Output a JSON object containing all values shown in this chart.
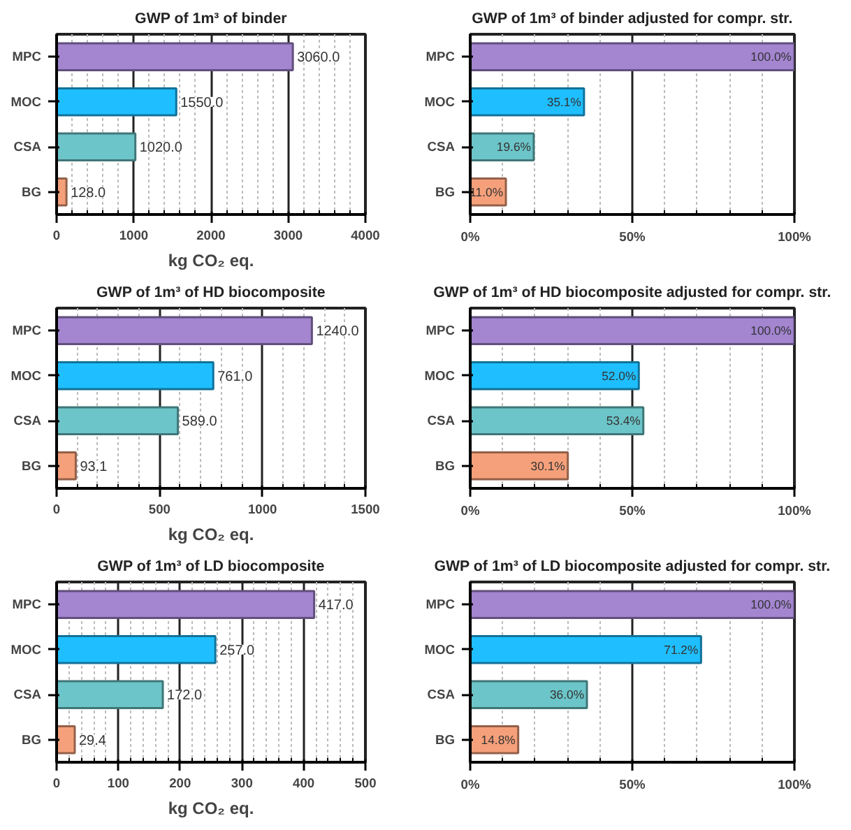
{
  "chart_data": [
    {
      "type": "bar",
      "orientation": "horizontal",
      "title": "GWP of 1m³ of binder",
      "xlabel": "kg CO₂ eq.",
      "categories": [
        "MPC",
        "MOC",
        "CSA",
        "BG"
      ],
      "values": [
        3060,
        1550,
        1020,
        128
      ],
      "value_labels": [
        "3060.0",
        "1550.0",
        "1020.0",
        "128.0"
      ],
      "colors": [
        "#a385d0",
        "#1fbfff",
        "#6cc5c8",
        "#f5a07a"
      ],
      "xlim": [
        0,
        4000
      ],
      "xticks": [
        0,
        {
          "value": 200,
          "label": null
        },
        {
          "value": 400,
          "label": null
        },
        {
          "value": 600,
          "label": null
        },
        {
          "value": 800,
          "label": null
        },
        1000,
        {
          "value": 1200,
          "label": null
        },
        {
          "value": 1400,
          "label": null
        },
        {
          "value": 1600,
          "label": null
        },
        {
          "value": 1800,
          "label": null
        },
        2000,
        {
          "value": 2200,
          "label": null
        },
        {
          "value": 2400,
          "label": null
        },
        {
          "value": 2600,
          "label": null
        },
        {
          "value": 2800,
          "label": null
        },
        3000,
        {
          "value": 3200,
          "label": null
        },
        {
          "value": 3400,
          "label": null
        },
        {
          "value": 3600,
          "label": null
        },
        {
          "value": 3800,
          "label": null
        },
        4000
      ],
      "grid": "x"
    },
    {
      "type": "bar",
      "orientation": "horizontal",
      "title": "GWP of 1m³ of binder adjusted for compr. str.",
      "ref_lines": [
        {
          "axis": "x",
          "value": 50
        }
      ],
      "categories": [
        "MPC",
        "MOC",
        "CSA",
        "BG"
      ],
      "values": [
        100.0,
        35.1,
        19.6,
        11.0
      ],
      "value_labels": [
        "100.0%",
        "35.1%",
        "19.6%",
        "11.0%"
      ],
      "colors": [
        "#a385d0",
        "#1fbfff",
        "#6cc5c8",
        "#f5a07a"
      ],
      "xlim": [
        0,
        100
      ],
      "xticks": [
        {
          "value": 0,
          "label": "0%"
        },
        {
          "value": 10,
          "label": null
        },
        {
          "value": 20,
          "label": null
        },
        {
          "value": 30,
          "label": null
        },
        {
          "value": 40,
          "label": null
        },
        {
          "value": 50,
          "label": "50%"
        },
        {
          "value": 60,
          "label": null
        },
        {
          "value": 70,
          "label": null
        },
        {
          "value": 80,
          "label": null
        },
        {
          "value": 90,
          "label": null
        },
        {
          "value": 100,
          "label": "100%"
        }
      ],
      "grid": "x"
    },
    {
      "type": "bar",
      "orientation": "horizontal",
      "title": "GWP of 1m³ of HD biocomposite",
      "xlabel": "kg CO₂ eq.",
      "categories": [
        "MPC",
        "MOC",
        "CSA",
        "BG"
      ],
      "values": [
        1240,
        761,
        589,
        93.1
      ],
      "value_labels": [
        "1240.0",
        "761.0",
        "589.0",
        "93.1"
      ],
      "colors": [
        "#a385d0",
        "#1fbfff",
        "#6cc5c8",
        "#f5a07a"
      ],
      "xlim": [
        0,
        1500
      ],
      "xticks": [
        0,
        {
          "value": 100,
          "label": null
        },
        {
          "value": 200,
          "label": null
        },
        {
          "value": 300,
          "label": null
        },
        {
          "value": 400,
          "label": null
        },
        500,
        {
          "value": 600,
          "label": null
        },
        {
          "value": 700,
          "label": null
        },
        {
          "value": 800,
          "label": null
        },
        {
          "value": 900,
          "label": null
        },
        1000,
        {
          "value": 1100,
          "label": null
        },
        {
          "value": 1200,
          "label": null
        },
        {
          "value": 1300,
          "label": null
        },
        {
          "value": 1400,
          "label": null
        },
        1500
      ],
      "grid": "x"
    },
    {
      "type": "bar",
      "orientation": "horizontal",
      "title": "GWP of 1m³ of HD biocomposite adjusted for compr. str.",
      "ref_lines": [
        {
          "axis": "x",
          "value": 50
        }
      ],
      "categories": [
        "MPC",
        "MOC",
        "CSA",
        "BG"
      ],
      "values": [
        100.0,
        52.0,
        53.4,
        30.1
      ],
      "value_labels": [
        "100.0%",
        "52.0%",
        "53.4%",
        "30.1%"
      ],
      "colors": [
        "#a385d0",
        "#1fbfff",
        "#6cc5c8",
        "#f5a07a"
      ],
      "xlim": [
        0,
        100
      ],
      "xticks": [
        {
          "value": 0,
          "label": "0%"
        },
        {
          "value": 10,
          "label": null
        },
        {
          "value": 20,
          "label": null
        },
        {
          "value": 30,
          "label": null
        },
        {
          "value": 40,
          "label": null
        },
        {
          "value": 50,
          "label": "50%"
        },
        {
          "value": 60,
          "label": null
        },
        {
          "value": 70,
          "label": null
        },
        {
          "value": 80,
          "label": null
        },
        {
          "value": 90,
          "label": null
        },
        {
          "value": 100,
          "label": "100%"
        }
      ],
      "grid": "x"
    },
    {
      "type": "bar",
      "orientation": "horizontal",
      "title": "GWP of 1m³ of LD biocomposite",
      "xlabel": "kg CO₂ eq.",
      "categories": [
        "MPC",
        "MOC",
        "CSA",
        "BG"
      ],
      "values": [
        417,
        257,
        172,
        29.4
      ],
      "value_labels": [
        "417.0",
        "257.0",
        "172.0",
        "29.4"
      ],
      "colors": [
        "#a385d0",
        "#1fbfff",
        "#6cc5c8",
        "#f5a07a"
      ],
      "xlim": [
        0,
        500
      ],
      "xticks": [
        0,
        {
          "value": 20,
          "label": null
        },
        {
          "value": 40,
          "label": null
        },
        {
          "value": 60,
          "label": null
        },
        {
          "value": 80,
          "label": null
        },
        100,
        {
          "value": 120,
          "label": null
        },
        {
          "value": 140,
          "label": null
        },
        {
          "value": 160,
          "label": null
        },
        {
          "value": 180,
          "label": null
        },
        200,
        {
          "value": 220,
          "label": null
        },
        {
          "value": 240,
          "label": null
        },
        {
          "value": 260,
          "label": null
        },
        {
          "value": 280,
          "label": null
        },
        300,
        {
          "value": 320,
          "label": null
        },
        {
          "value": 340,
          "label": null
        },
        {
          "value": 360,
          "label": null
        },
        {
          "value": 380,
          "label": null
        },
        400,
        {
          "value": 420,
          "label": null
        },
        {
          "value": 440,
          "label": null
        },
        {
          "value": 460,
          "label": null
        },
        {
          "value": 480,
          "label": null
        },
        500
      ],
      "grid": "x"
    },
    {
      "type": "bar",
      "orientation": "horizontal",
      "title": "GWP of 1m³ of LD biocomposite adjusted for compr. str.",
      "ref_lines": [
        {
          "axis": "x",
          "value": 50
        }
      ],
      "categories": [
        "MPC",
        "MOC",
        "CSA",
        "BG"
      ],
      "values": [
        100.0,
        71.2,
        36.0,
        14.8
      ],
      "value_labels": [
        "100.0%",
        "71.2%",
        "36.0%",
        "14.8%"
      ],
      "colors": [
        "#a385d0",
        "#1fbfff",
        "#6cc5c8",
        "#f5a07a"
      ],
      "xlim": [
        0,
        100
      ],
      "xticks": [
        {
          "value": 0,
          "label": "0%"
        },
        {
          "value": 10,
          "label": null
        },
        {
          "value": 20,
          "label": null
        },
        {
          "value": 30,
          "label": null
        },
        {
          "value": 40,
          "label": null
        },
        {
          "value": 50,
          "label": "50%"
        },
        {
          "value": 60,
          "label": null
        },
        {
          "value": 70,
          "label": null
        },
        {
          "value": 80,
          "label": null
        },
        {
          "value": 90,
          "label": null
        },
        {
          "value": 100,
          "label": "100%"
        }
      ],
      "grid": "x"
    }
  ]
}
